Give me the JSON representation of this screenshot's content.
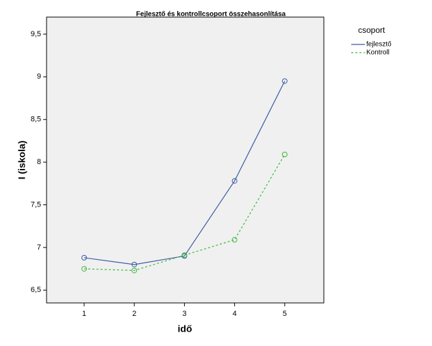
{
  "chart_data": {
    "type": "line",
    "title": "Fejlesztő és kontrollcsoport összehasonlítása",
    "x_label": "idő",
    "y_label": "I (iskola)",
    "legend_title": "csoport",
    "x": [
      1,
      2,
      3,
      4,
      5
    ],
    "xlim": [
      0.25,
      5.78
    ],
    "xticks": [
      1,
      2,
      3,
      4,
      5
    ],
    "ylim": [
      6.35,
      9.7
    ],
    "yticks": [
      {
        "value": 6.5,
        "label": "6,5"
      },
      {
        "value": 7,
        "label": "7"
      },
      {
        "value": 7.5,
        "label": "7,5"
      },
      {
        "value": 8,
        "label": "8"
      },
      {
        "value": 8.5,
        "label": "8,5"
      },
      {
        "value": 9,
        "label": "9"
      },
      {
        "value": 9.5,
        "label": "9,5"
      }
    ],
    "series": [
      {
        "name": "fejlesztő",
        "color": "#3b5ba5",
        "line_style": "solid",
        "values": [
          6.88,
          6.8,
          6.9,
          7.78,
          8.95
        ]
      },
      {
        "name": "Kontroll",
        "color": "#3cb83c",
        "line_style": "dashed",
        "values": [
          6.75,
          6.73,
          6.91,
          7.09,
          8.09
        ]
      }
    ]
  }
}
